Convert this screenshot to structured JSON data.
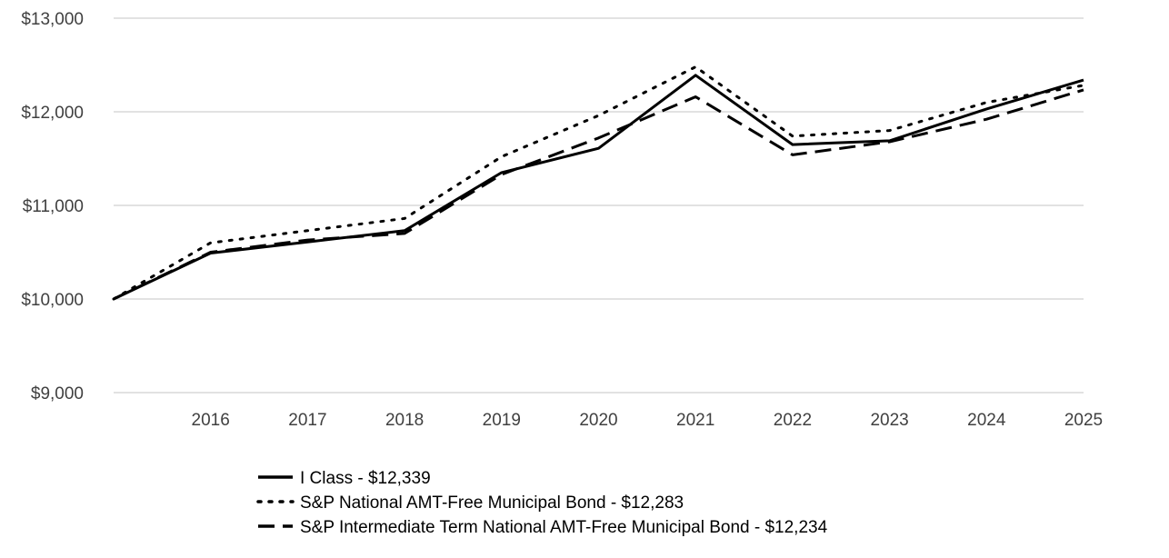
{
  "chart_data": {
    "type": "line",
    "title": "",
    "xlabel": "",
    "ylabel": "",
    "x": [
      "2015",
      "2016",
      "2017",
      "2018",
      "2019",
      "2020",
      "2021",
      "2022",
      "2023",
      "2024",
      "2025"
    ],
    "x_tick_labels": [
      "2016",
      "2017",
      "2018",
      "2019",
      "2020",
      "2021",
      "2022",
      "2023",
      "2024",
      "2025"
    ],
    "ylim": [
      9000,
      13000
    ],
    "y_ticks": [
      9000,
      10000,
      11000,
      12000,
      13000
    ],
    "y_tick_labels": [
      "$9,000",
      "$10,000",
      "$11,000",
      "$12,000",
      "$13,000"
    ],
    "grid": true,
    "legend_position": "bottom",
    "series": [
      {
        "name": "I Class - $12,339",
        "style": "solid",
        "values": [
          10000,
          10490,
          10610,
          10730,
          11350,
          11610,
          12390,
          11650,
          11690,
          12030,
          12339
        ]
      },
      {
        "name": "S&P National AMT-Free Municipal Bond - $12,283",
        "style": "dotted",
        "values": [
          10000,
          10600,
          10730,
          10860,
          11520,
          11960,
          12480,
          11740,
          11800,
          12100,
          12283
        ]
      },
      {
        "name": "S&P Intermediate Term National AMT-Free Municipal Bond - $12,234",
        "style": "dashed",
        "values": [
          10000,
          10500,
          10630,
          10700,
          11330,
          11720,
          12160,
          11540,
          11680,
          11920,
          12234
        ]
      }
    ],
    "colors": {
      "line": "#000000",
      "grid": "#d9d9d9",
      "tick_text": "#404040",
      "legend_text": "#000000"
    }
  }
}
